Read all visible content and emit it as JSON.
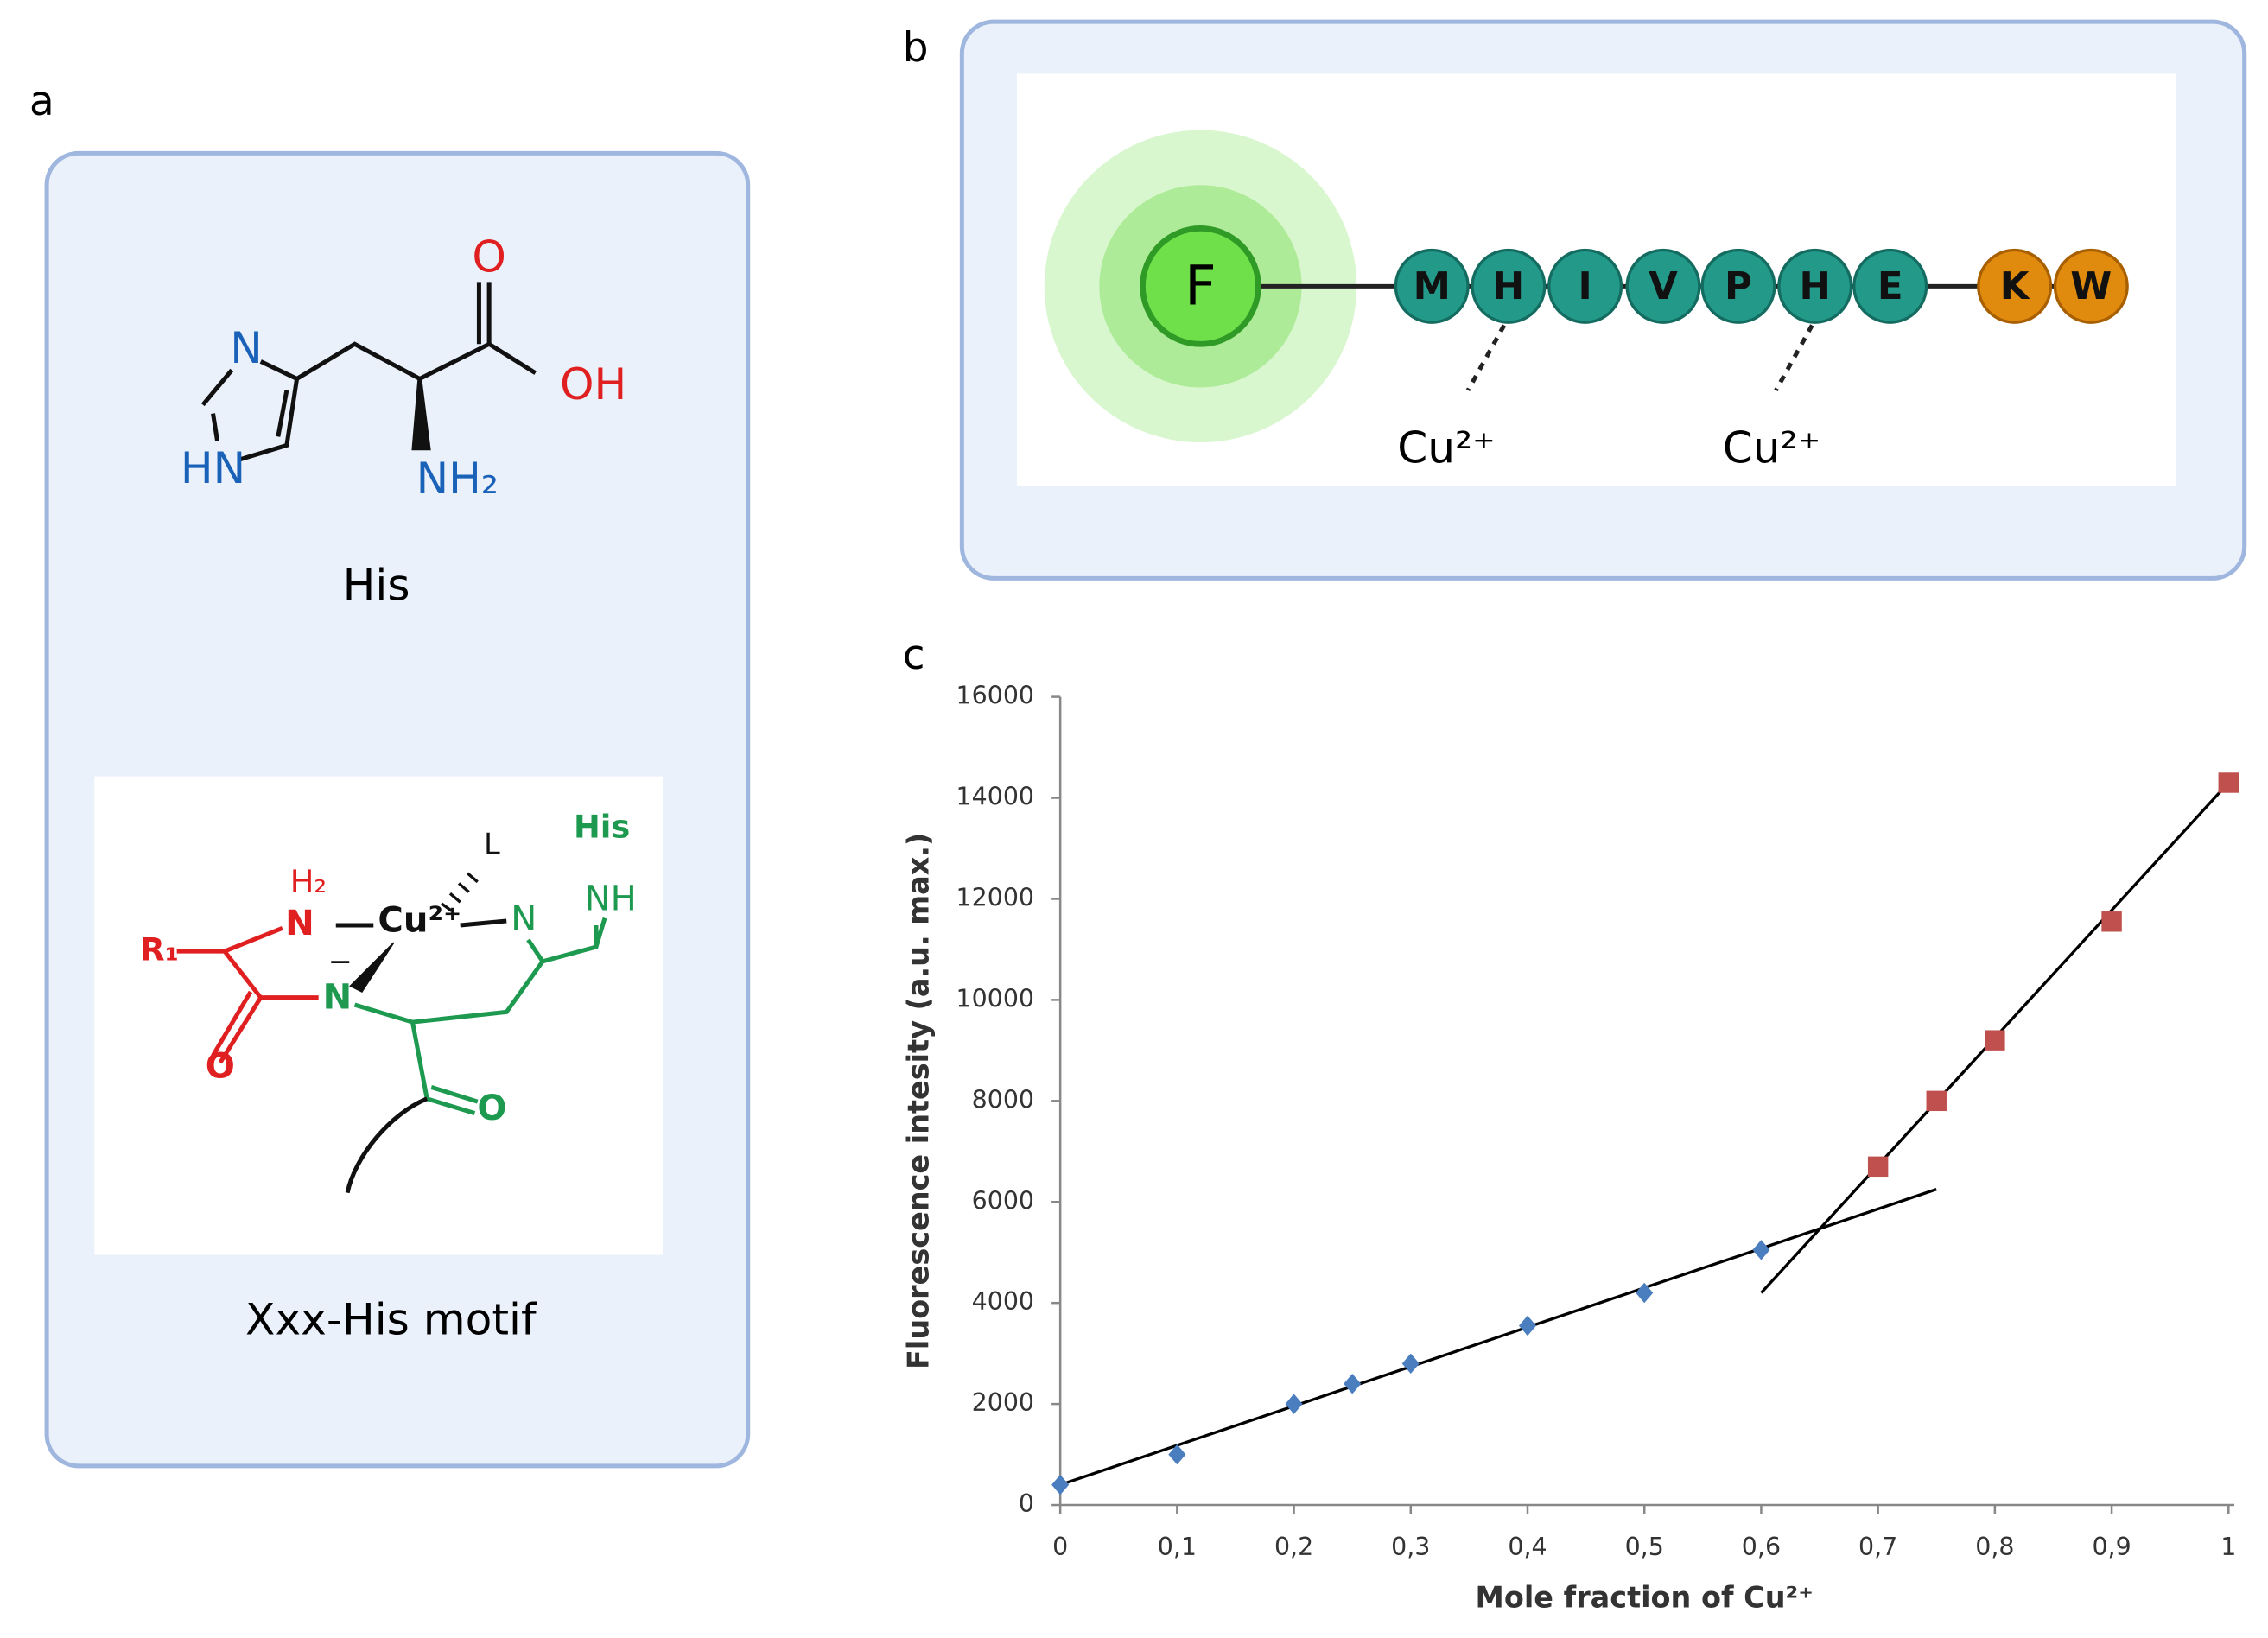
{
  "panels": {
    "a": {
      "label": "a",
      "his": {
        "atoms": [
          "O",
          "OH",
          "N",
          "HN",
          "NH₂"
        ],
        "caption": "His"
      },
      "motif": {
        "atoms": [
          "His",
          "L",
          "H₂",
          "N",
          "Cu²⁺",
          "N",
          "NH",
          "R₁",
          "N",
          "−",
          "O",
          "O"
        ],
        "caption": "Xxx-His motif"
      }
    },
    "b": {
      "label": "b",
      "fluorophore": "F",
      "residues": [
        "M",
        "H",
        "I",
        "V",
        "P",
        "H",
        "E",
        "K",
        "W"
      ],
      "ions": [
        "Cu²⁺",
        "Cu²⁺"
      ]
    },
    "c": {
      "label": "c"
    }
  },
  "chart_data": {
    "type": "scatter",
    "x_label": "Mole fraction of Cu²⁺",
    "y_label": "Fluorescence intesity (a.u. max.)",
    "xlim": [
      0,
      1
    ],
    "ylim": [
      0,
      16000
    ],
    "xticks": [
      0,
      {
        "value": 0.1,
        "label": "0,1"
      },
      {
        "value": 0.2,
        "label": "0,2"
      },
      {
        "value": 0.3,
        "label": "0,3"
      },
      {
        "value": 0.4,
        "label": "0,4"
      },
      {
        "value": 0.5,
        "label": "0,5"
      },
      {
        "value": 0.6,
        "label": "0,6"
      },
      {
        "value": 0.7,
        "label": "0,7"
      },
      {
        "value": 0.8,
        "label": "0,8"
      },
      {
        "value": 0.9,
        "label": "0,9"
      },
      1
    ],
    "yticks": [
      0,
      2000,
      4000,
      6000,
      8000,
      10000,
      12000,
      14000,
      16000
    ],
    "series": [
      {
        "color": "#4a7ebf",
        "marker": "diamond",
        "x": [
          0,
          0.1,
          0.2,
          0.25,
          0.3,
          0.4,
          0.5,
          0.6
        ],
        "values": [
          400,
          1000,
          2000,
          2400,
          2800,
          3550,
          4200,
          5050
        ]
      },
      {
        "color": "#c0504d",
        "marker": "square",
        "x": [
          0.7,
          0.75,
          0.8,
          0.9,
          1
        ],
        "values": [
          6700,
          8000,
          9200,
          11550,
          14300
        ]
      }
    ],
    "fit_lines": [
      {
        "color": "#000000",
        "x": [
          0,
          0.75
        ],
        "values": [
          400,
          6250
        ]
      },
      {
        "color": "#000000",
        "x": [
          0.6,
          1
        ],
        "values": [
          4200,
          14300
        ]
      }
    ]
  }
}
